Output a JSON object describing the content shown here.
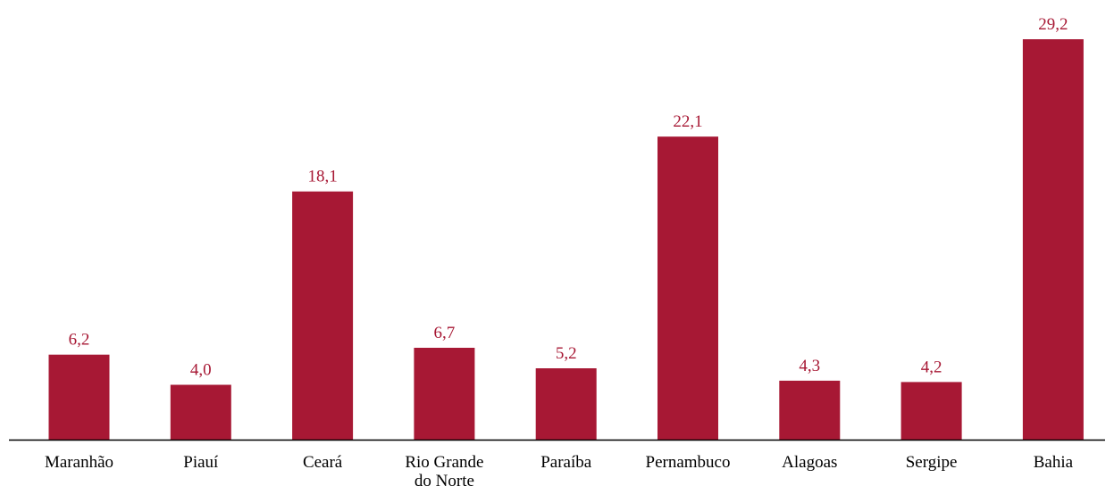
{
  "colors": {
    "bar": "#A71834",
    "value_label": "#A71834",
    "axis": "#000000",
    "tick_label": "#000000"
  },
  "chart_data": {
    "type": "bar",
    "categories": [
      "Maranhão",
      "Piauí",
      "Ceará",
      "Rio Grande do Norte",
      "Paraíba",
      "Pernambuco",
      "Alagoas",
      "Sergipe",
      "Bahia"
    ],
    "category_label_lines": [
      [
        "Maranhão"
      ],
      [
        "Piauí"
      ],
      [
        "Ceará"
      ],
      [
        "Rio Grande",
        "do Norte"
      ],
      [
        "Paraíba"
      ],
      [
        "Pernambuco"
      ],
      [
        "Alagoas"
      ],
      [
        "Sergipe"
      ],
      [
        "Bahia"
      ]
    ],
    "values": [
      6.2,
      4.0,
      18.1,
      6.7,
      5.2,
      22.1,
      4.3,
      4.2,
      29.2
    ],
    "value_labels": [
      "6,2",
      "4,0",
      "18,1",
      "6,7",
      "5,2",
      "22,1",
      "4,3",
      "4,2",
      "29,2"
    ],
    "title": "",
    "xlabel": "",
    "ylabel": "",
    "ylim": [
      0,
      30
    ],
    "grid": false,
    "legend": "none"
  }
}
